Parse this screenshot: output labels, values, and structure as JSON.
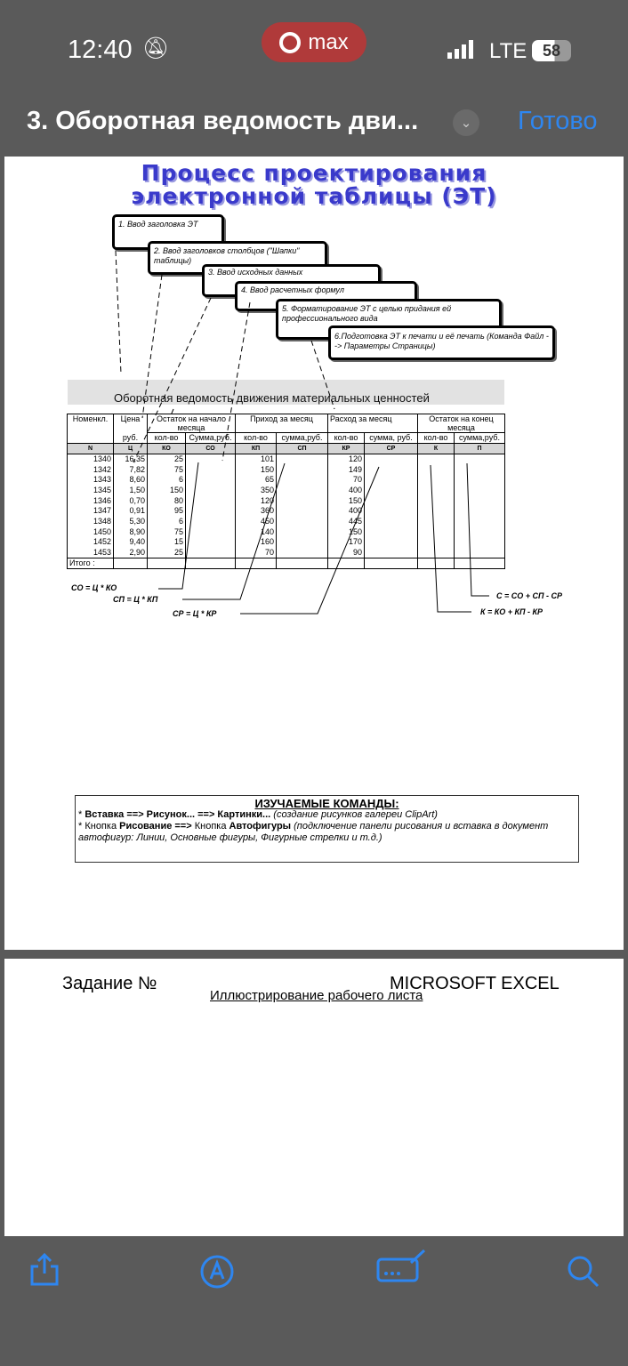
{
  "status_bar": {
    "time": "12:40",
    "app_pill": "max",
    "network": "LTE",
    "battery": "58"
  },
  "nav": {
    "title": "3. Оборотная ведомость дви...",
    "done_label": "Готово"
  },
  "doc": {
    "title_line1": "Процесс проектирования",
    "title_line2": "электронной таблицы (ЭТ)",
    "steps": [
      "1. Ввод заголовка ЭТ",
      "2. Ввод заголовков столбцов (\"Шапки\" таблицы)",
      "3. Ввод исходных данных",
      "4. Ввод расчетных формул",
      "5. Форматирование ЭТ с целью придания ей профессионального вида",
      "6.Подготовка ЭТ к печати и её печать (Команда Файл --> Параметры Страницы)"
    ],
    "sheet_title": "Оборотная ведомость движения материальных ценностей",
    "table": {
      "h_nomen": "Номенкл.",
      "h_price": "Цена",
      "h_price_unit": "руб.",
      "h_start": "Остаток на начало месяца",
      "h_in": "Приход за месяц",
      "h_out": "Расход за месяц",
      "h_end": "Остаток на конец месяца",
      "sub": [
        "кол-во",
        "Сумма,руб.",
        "кол-во",
        "сумма,руб.",
        "кол-во",
        "сумма, руб.",
        "кол-во",
        "сумма,руб."
      ],
      "codes": [
        "N",
        "Ц",
        "КО",
        "СО",
        "КП",
        "СП",
        "КР",
        "СР",
        "К",
        "П"
      ],
      "rows": [
        [
          "1340",
          "16,35",
          "25",
          "101",
          "120"
        ],
        [
          "1342",
          "7,82",
          "75",
          "150",
          "149"
        ],
        [
          "1343",
          "8,60",
          "6",
          "65",
          "70"
        ],
        [
          "1345",
          "1,50",
          "150",
          "350",
          "400"
        ],
        [
          "1346",
          "0,70",
          "80",
          "120",
          "150"
        ],
        [
          "1347",
          "0,91",
          "95",
          "360",
          "400"
        ],
        [
          "1348",
          "5,30",
          "6",
          "450",
          "445"
        ],
        [
          "1450",
          "8,90",
          "75",
          "140",
          "150"
        ],
        [
          "1452",
          "9,40",
          "15",
          "160",
          "170"
        ],
        [
          "1453",
          "2,90",
          "25",
          "70",
          "90"
        ]
      ],
      "total_label": "Итого :"
    },
    "formulas": {
      "co": "СО = Ц * КО",
      "sp": "СП = Ц * КП",
      "sr": "СР = Ц * КР",
      "c": "С = СО + СП - СР",
      "k": "К = КО + КП - КР"
    },
    "commands": {
      "heading": "ИЗУЧАЕМЫЕ КОМАНДЫ:",
      "l1_a": "* ",
      "l1_b": "Вставка ==> Рисунок... ==> Картинки...",
      "l1_c": " (создание рисунков галереи ClipArt)",
      "l2_a": "* Кнопка ",
      "l2_b": "Рисование ==>",
      "l2_c": " Кнопка ",
      "l2_d": "Автофигуры",
      "l2_e": " (подключение панели рисования и вставка в документ автофигур: Линии, Основные фигуры, Фигурные стрелки и т.д.)"
    }
  },
  "page2": {
    "task": "Задание №",
    "app": "MICROSOFT EXCEL",
    "subtitle": "Иллюстрирование рабочего листа"
  },
  "toolbar": {
    "icons": [
      "share-icon",
      "markup-icon",
      "signature-icon",
      "search-icon"
    ],
    "accent": "#2e86f0"
  }
}
